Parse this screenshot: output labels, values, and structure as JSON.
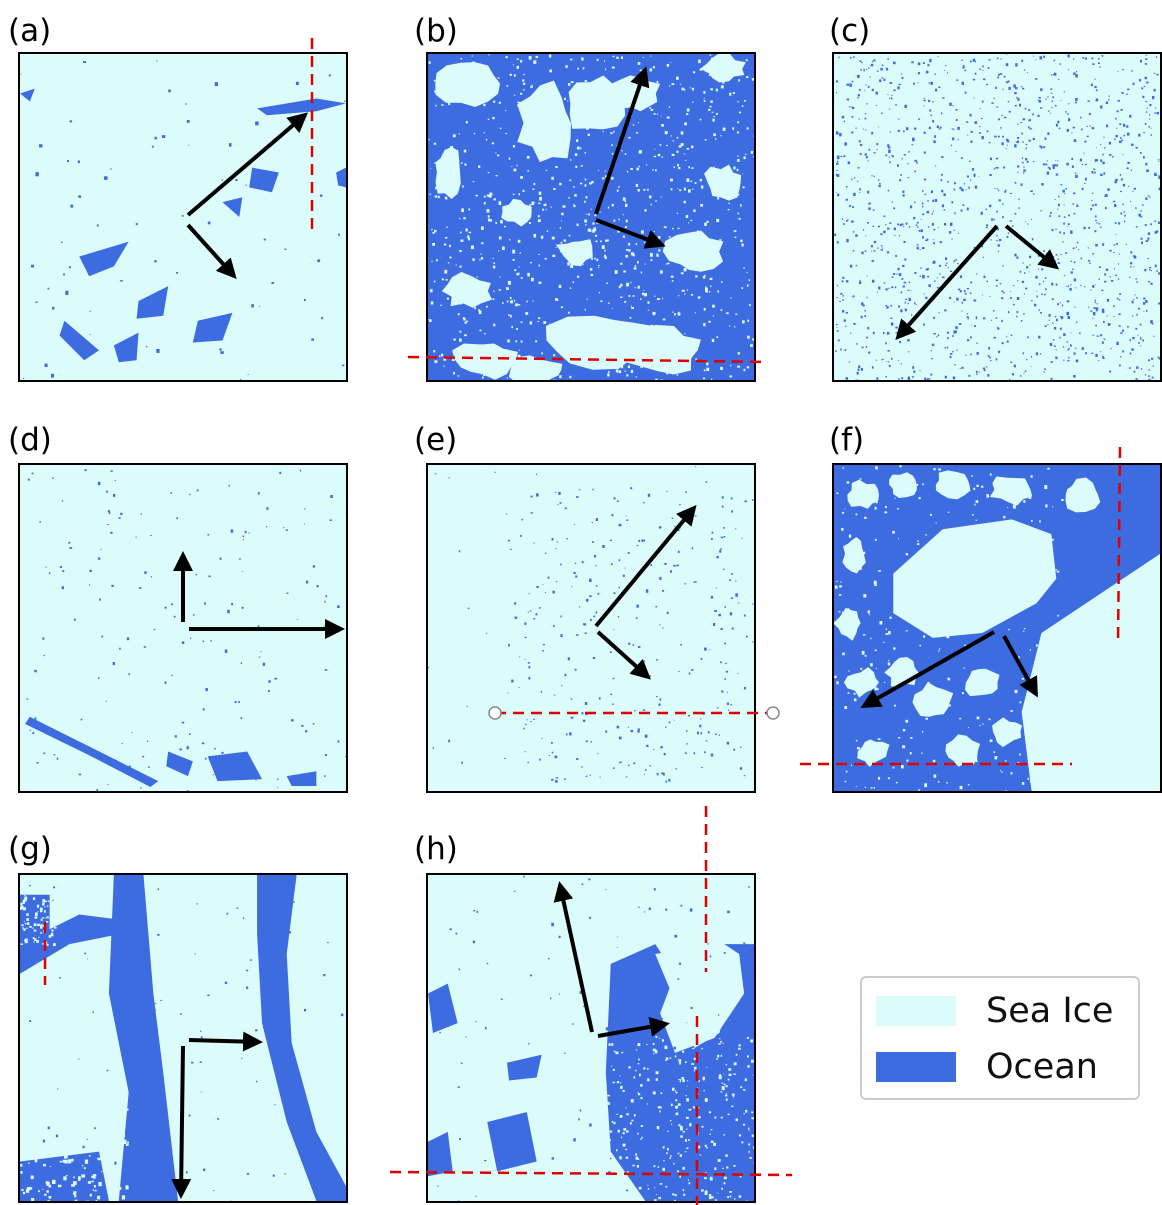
{
  "colors": {
    "ice": "#dcfbfb",
    "ocean": "#3d6ce0",
    "arrow": "#000000",
    "cut_line": "#e00000"
  },
  "panels": [
    {
      "id": "a",
      "label": "(a)"
    },
    {
      "id": "b",
      "label": "(b)"
    },
    {
      "id": "c",
      "label": "(c)"
    },
    {
      "id": "d",
      "label": "(d)"
    },
    {
      "id": "e",
      "label": "(e)"
    },
    {
      "id": "f",
      "label": "(f)"
    },
    {
      "id": "g",
      "label": "(g)"
    },
    {
      "id": "h",
      "label": "(h)"
    }
  ],
  "legend": {
    "items": [
      {
        "label": "Sea Ice"
      },
      {
        "label": "Ocean"
      }
    ]
  }
}
